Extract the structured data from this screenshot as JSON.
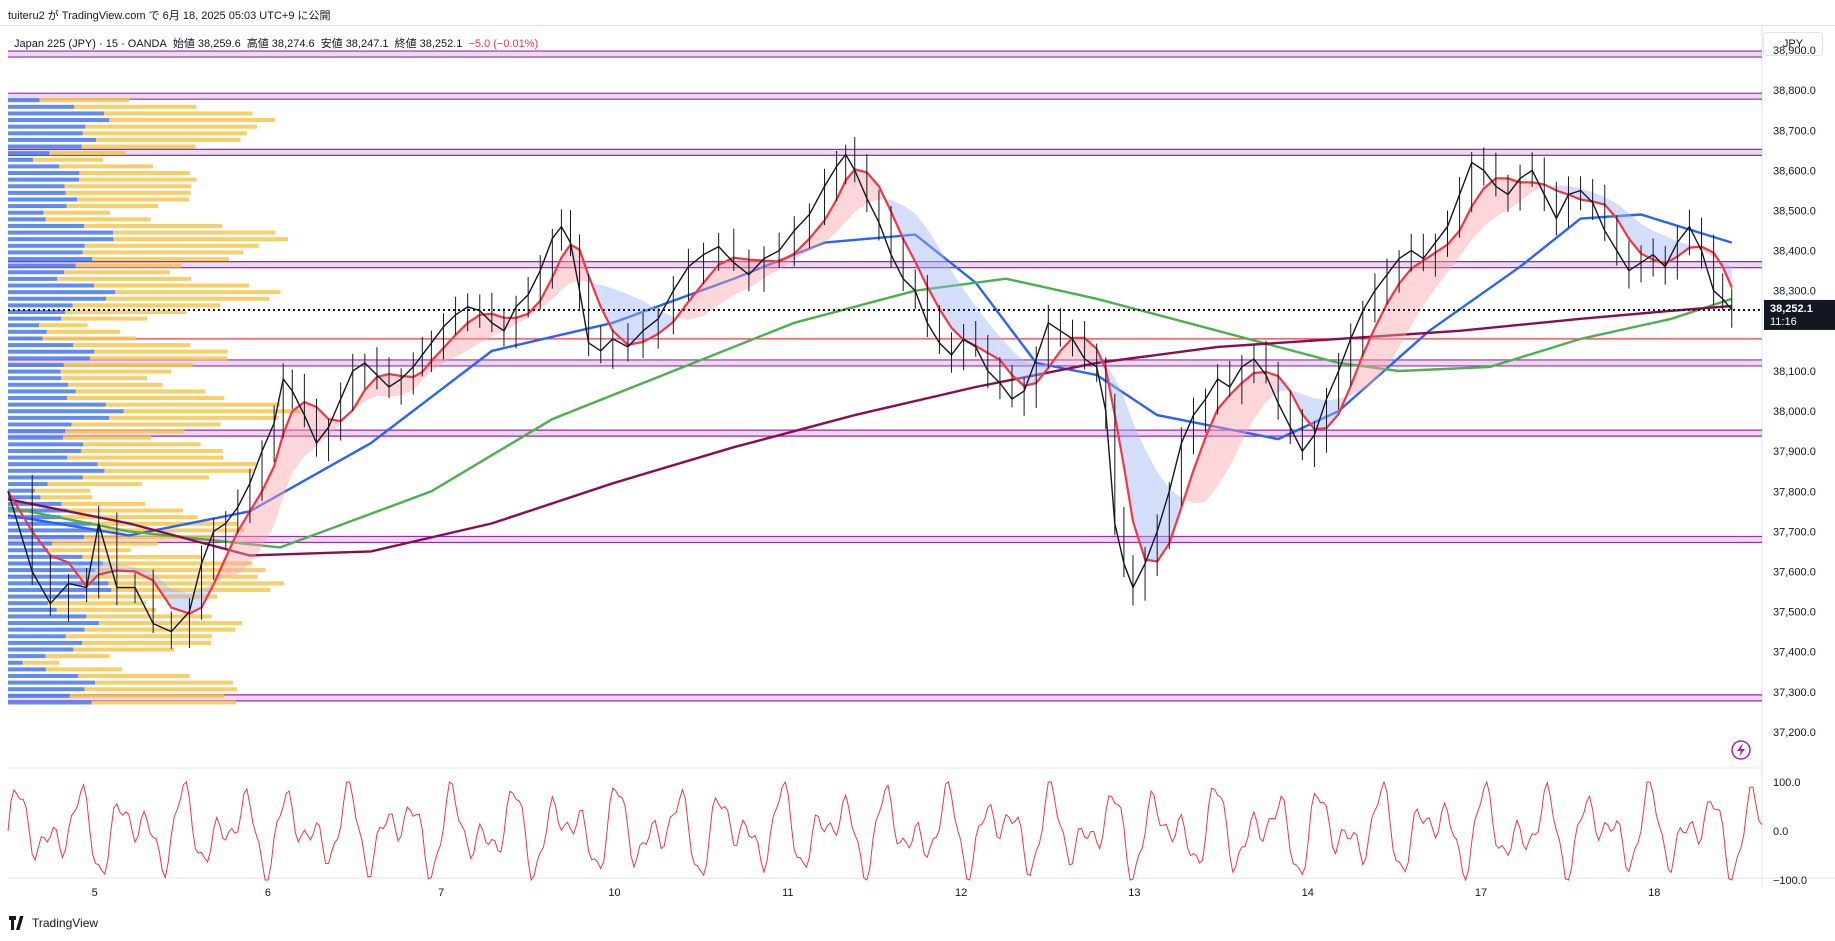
{
  "header": {
    "published": "tuiteru2 が TradingView.com で 6月 18, 2025 05:03 UTC+9 に公開"
  },
  "legend": {
    "symbol": "Japan 225 (JPY) · 15 · OANDA",
    "open_label": "始値",
    "open": "38,259.6",
    "high_label": "高値",
    "high": "38,274.6",
    "low_label": "安値",
    "low": "38,247.1",
    "close_label": "終値",
    "close": "38,252.1",
    "change": "−5.0 (−0.01%)"
  },
  "currency": "JPY",
  "price_tag": {
    "price": "38,252.1",
    "countdown": "11:16"
  },
  "footer": {
    "brand": "TradingView"
  },
  "colors": {
    "candle": "#131722",
    "ma_fast": "#f23645",
    "ma_mid": "#2962ff",
    "ma_slow": "#4caf50",
    "ma_long": "#880e4f",
    "resistance_band": "#9c27b0",
    "volume_up": "#4f7ff0",
    "volume_down": "#f5c242",
    "oscillator": "#f23645"
  },
  "chart_data": {
    "type": "line",
    "title": "",
    "x_ticks": [
      "5",
      "6",
      "7",
      "10",
      "11",
      "12",
      "13",
      "14",
      "17",
      "18"
    ],
    "y_ticks": [
      "38,900.0",
      "38,800.0",
      "38,700.0",
      "38,600.0",
      "38,500.0",
      "38,400.0",
      "38,300.0",
      "38,100.0",
      "38,000.0",
      "37,900.0",
      "37,800.0",
      "37,700.0",
      "37,600.0",
      "37,500.0",
      "37,400.0",
      "37,300.0",
      "37,200.0"
    ],
    "ylim": [
      37150,
      38960
    ],
    "last_price": 38252.1,
    "horizontal_levels": [
      38890,
      38785,
      38645,
      38365,
      38120,
      37945,
      37680,
      37285
    ],
    "red_level": 38180,
    "price_path": [
      [
        0,
        37800
      ],
      [
        8,
        37600
      ],
      [
        14,
        37520
      ],
      [
        20,
        37570
      ],
      [
        26,
        37560
      ],
      [
        30,
        37720
      ],
      [
        36,
        37560
      ],
      [
        42,
        37560
      ],
      [
        48,
        37470
      ],
      [
        54,
        37450
      ],
      [
        60,
        37500
      ],
      [
        64,
        37620
      ],
      [
        68,
        37700
      ],
      [
        72,
        37720
      ],
      [
        76,
        37760
      ],
      [
        80,
        37820
      ],
      [
        84,
        37900
      ],
      [
        88,
        37970
      ],
      [
        91,
        38080
      ],
      [
        94,
        38050
      ],
      [
        98,
        37990
      ],
      [
        102,
        37920
      ],
      [
        106,
        37960
      ],
      [
        110,
        38030
      ],
      [
        114,
        38100
      ],
      [
        118,
        38120
      ],
      [
        122,
        38090
      ],
      [
        126,
        38060
      ],
      [
        130,
        38080
      ],
      [
        134,
        38110
      ],
      [
        137,
        38140
      ],
      [
        140,
        38170
      ],
      [
        144,
        38210
      ],
      [
        148,
        38240
      ],
      [
        152,
        38260
      ],
      [
        156,
        38250
      ],
      [
        160,
        38220
      ],
      [
        164,
        38200
      ],
      [
        168,
        38260
      ],
      [
        172,
        38290
      ],
      [
        176,
        38350
      ],
      [
        180,
        38430
      ],
      [
        183,
        38460
      ],
      [
        186,
        38420
      ],
      [
        189,
        38300
      ],
      [
        192,
        38170
      ],
      [
        196,
        38150
      ],
      [
        200,
        38180
      ],
      [
        205,
        38160
      ],
      [
        210,
        38200
      ],
      [
        215,
        38230
      ],
      [
        220,
        38300
      ],
      [
        225,
        38360
      ],
      [
        230,
        38390
      ],
      [
        235,
        38410
      ],
      [
        240,
        38370
      ],
      [
        245,
        38340
      ],
      [
        250,
        38380
      ],
      [
        255,
        38400
      ],
      [
        260,
        38450
      ],
      [
        265,
        38490
      ],
      [
        270,
        38560
      ],
      [
        274,
        38610
      ],
      [
        277,
        38640
      ],
      [
        280,
        38600
      ],
      [
        284,
        38530
      ],
      [
        288,
        38470
      ],
      [
        292,
        38390
      ],
      [
        296,
        38330
      ],
      [
        300,
        38300
      ],
      [
        304,
        38220
      ],
      [
        308,
        38170
      ],
      [
        312,
        38140
      ],
      [
        316,
        38180
      ],
      [
        320,
        38160
      ],
      [
        324,
        38100
      ],
      [
        328,
        38070
      ],
      [
        332,
        38030
      ],
      [
        336,
        38050
      ],
      [
        340,
        38130
      ],
      [
        344,
        38220
      ],
      [
        348,
        38200
      ],
      [
        352,
        38180
      ],
      [
        356,
        38130
      ],
      [
        360,
        38110
      ],
      [
        363,
        38000
      ],
      [
        366,
        37720
      ],
      [
        369,
        37620
      ],
      [
        372,
        37560
      ],
      [
        376,
        37620
      ],
      [
        380,
        37700
      ],
      [
        384,
        37800
      ],
      [
        388,
        37920
      ],
      [
        392,
        37990
      ],
      [
        396,
        38030
      ],
      [
        400,
        38080
      ],
      [
        404,
        38060
      ],
      [
        408,
        38110
      ],
      [
        412,
        38130
      ],
      [
        416,
        38090
      ],
      [
        420,
        38020
      ],
      [
        424,
        37960
      ],
      [
        428,
        37900
      ],
      [
        432,
        37940
      ],
      [
        436,
        38030
      ],
      [
        440,
        38100
      ],
      [
        444,
        38180
      ],
      [
        448,
        38250
      ],
      [
        452,
        38300
      ],
      [
        456,
        38340
      ],
      [
        460,
        38380
      ],
      [
        464,
        38400
      ],
      [
        468,
        38380
      ],
      [
        472,
        38420
      ],
      [
        476,
        38460
      ],
      [
        480,
        38540
      ],
      [
        484,
        38620
      ],
      [
        488,
        38600
      ],
      [
        492,
        38560
      ],
      [
        496,
        38540
      ],
      [
        500,
        38580
      ],
      [
        504,
        38600
      ],
      [
        508,
        38540
      ],
      [
        512,
        38480
      ],
      [
        516,
        38540
      ],
      [
        520,
        38550
      ],
      [
        524,
        38520
      ],
      [
        528,
        38450
      ],
      [
        532,
        38400
      ],
      [
        536,
        38350
      ],
      [
        540,
        38370
      ],
      [
        544,
        38390
      ],
      [
        548,
        38360
      ],
      [
        552,
        38420
      ],
      [
        556,
        38460
      ],
      [
        560,
        38400
      ],
      [
        564,
        38300
      ],
      [
        567,
        38280
      ],
      [
        570,
        38252.1
      ]
    ],
    "series": [
      {
        "name": "",
        "values": [
          [
            0,
            37740
          ],
          [
            40,
            37690
          ],
          [
            80,
            37750
          ],
          [
            120,
            37920
          ],
          [
            160,
            38150
          ],
          [
            200,
            38220
          ],
          [
            240,
            38330
          ],
          [
            270,
            38420
          ],
          [
            300,
            38440
          ],
          [
            320,
            38320
          ],
          [
            340,
            38120
          ],
          [
            360,
            38090
          ],
          [
            380,
            37990
          ],
          [
            400,
            37960
          ],
          [
            420,
            37930
          ],
          [
            440,
            38000
          ],
          [
            470,
            38200
          ],
          [
            500,
            38360
          ],
          [
            520,
            38480
          ],
          [
            540,
            38490
          ],
          [
            570,
            38420
          ]
        ]
      },
      {
        "name": "",
        "values": [
          [
            0,
            37760
          ],
          [
            40,
            37700
          ],
          [
            90,
            37660
          ],
          [
            140,
            37800
          ],
          [
            180,
            37980
          ],
          [
            220,
            38100
          ],
          [
            260,
            38220
          ],
          [
            300,
            38300
          ],
          [
            330,
            38330
          ],
          [
            360,
            38280
          ],
          [
            400,
            38200
          ],
          [
            420,
            38160
          ],
          [
            440,
            38120
          ],
          [
            460,
            38100
          ],
          [
            490,
            38110
          ],
          [
            520,
            38180
          ],
          [
            550,
            38230
          ],
          [
            570,
            38280
          ]
        ]
      },
      {
        "name": "",
        "values": [
          [
            0,
            37780
          ],
          [
            40,
            37720
          ],
          [
            80,
            37640
          ],
          [
            120,
            37650
          ],
          [
            160,
            37720
          ],
          [
            200,
            37820
          ],
          [
            240,
            37910
          ],
          [
            280,
            37990
          ],
          [
            320,
            38060
          ],
          [
            360,
            38120
          ],
          [
            400,
            38160
          ],
          [
            440,
            38180
          ],
          [
            480,
            38200
          ],
          [
            520,
            38230
          ],
          [
            550,
            38250
          ],
          [
            570,
            38262
          ]
        ]
      }
    ],
    "oscillator": {
      "ylim": [
        -100,
        100
      ],
      "ticks": [
        "100.0",
        "0.0",
        "−100.0"
      ]
    }
  }
}
